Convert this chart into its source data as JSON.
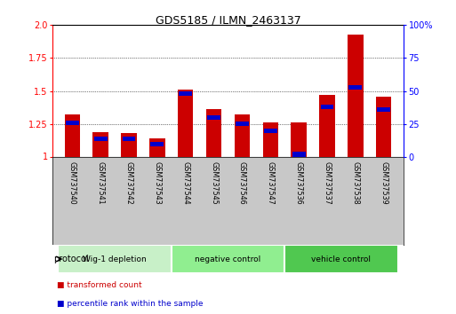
{
  "title": "GDS5185 / ILMN_2463137",
  "samples": [
    "GSM737540",
    "GSM737541",
    "GSM737542",
    "GSM737543",
    "GSM737544",
    "GSM737545",
    "GSM737546",
    "GSM737547",
    "GSM737536",
    "GSM737537",
    "GSM737538",
    "GSM737539"
  ],
  "red_values": [
    1.32,
    1.19,
    1.18,
    1.14,
    1.51,
    1.36,
    1.32,
    1.26,
    1.26,
    1.47,
    1.93,
    1.46
  ],
  "blue_values": [
    26,
    14,
    14,
    10,
    48,
    30,
    25,
    20,
    2,
    38,
    53,
    36
  ],
  "groups": [
    {
      "label": "Wig-1 depletion",
      "start": 0,
      "end": 3,
      "color": "#c8f0c8"
    },
    {
      "label": "negative control",
      "start": 4,
      "end": 7,
      "color": "#90ee90"
    },
    {
      "label": "vehicle control",
      "start": 8,
      "end": 11,
      "color": "#50c850"
    }
  ],
  "ylim_left": [
    1.0,
    2.0
  ],
  "ylim_right": [
    0,
    100
  ],
  "yticks_left": [
    1.0,
    1.25,
    1.5,
    1.75,
    2.0
  ],
  "yticks_right": [
    0,
    25,
    50,
    75,
    100
  ],
  "red_color": "#cc0000",
  "blue_color": "#0000cc",
  "bar_width": 0.55,
  "tick_label_area_color": "#c8c8c8",
  "legend_red_label": "transformed count",
  "legend_blue_label": "percentile rank within the sample",
  "protocol_label": "protocol"
}
